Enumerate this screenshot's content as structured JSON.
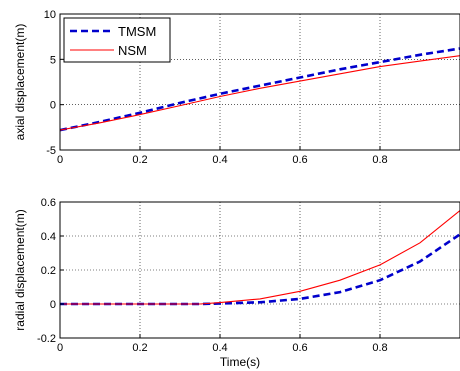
{
  "chart_data": [
    {
      "type": "line",
      "title": "",
      "xlabel": "",
      "ylabel": "axial displacement(m)",
      "xlim": [
        0,
        1
      ],
      "ylim": [
        -5,
        10
      ],
      "xticks": [
        0,
        0.2,
        0.4,
        0.6,
        0.8
      ],
      "xtick_labels": [
        "0",
        "0.2",
        "0.4",
        "0.6",
        "0.8"
      ],
      "yticks": [
        -5,
        0,
        5,
        10
      ],
      "ytick_labels": [
        "-5",
        "0",
        "5",
        "10"
      ],
      "grid": true,
      "legend": "top-left",
      "series": [
        {
          "name": "TMSM",
          "color": "#0000cc",
          "style": "dashed",
          "x": [
            0,
            0.1,
            0.2,
            0.3,
            0.4,
            0.5,
            0.6,
            0.7,
            0.8,
            0.9,
            1.0
          ],
          "y": [
            -2.8,
            -1.9,
            -0.9,
            0.2,
            1.2,
            2.1,
            3.0,
            3.9,
            4.7,
            5.5,
            6.2
          ]
        },
        {
          "name": "NSM",
          "color": "#ff0000",
          "style": "solid",
          "x": [
            0,
            0.1,
            0.2,
            0.3,
            0.4,
            0.5,
            0.6,
            0.7,
            0.8,
            0.9,
            1.0
          ],
          "y": [
            -2.8,
            -2.0,
            -1.1,
            -0.1,
            0.9,
            1.8,
            2.6,
            3.4,
            4.2,
            4.8,
            5.4
          ]
        }
      ]
    },
    {
      "type": "line",
      "title": "",
      "xlabel": "Time(s)",
      "ylabel": "radial displacement(m)",
      "xlim": [
        0,
        1
      ],
      "ylim": [
        -0.2,
        0.6
      ],
      "xticks": [
        0,
        0.2,
        0.4,
        0.6,
        0.8
      ],
      "xtick_labels": [
        "0",
        "0.2",
        "0.4",
        "0.6",
        "0.8"
      ],
      "yticks": [
        -0.2,
        0,
        0.2,
        0.4,
        0.6
      ],
      "ytick_labels": [
        "-0.2",
        "0",
        "0.2",
        "0.4",
        "0.6"
      ],
      "grid": true,
      "series": [
        {
          "name": "TMSM",
          "color": "#0000cc",
          "style": "dashed",
          "x": [
            0,
            0.2,
            0.35,
            0.4,
            0.5,
            0.6,
            0.7,
            0.8,
            0.9,
            1.0
          ],
          "y": [
            0,
            0,
            0,
            0.003,
            0.01,
            0.03,
            0.07,
            0.14,
            0.25,
            0.41
          ]
        },
        {
          "name": "NSM",
          "color": "#ff0000",
          "style": "solid",
          "x": [
            0,
            0.2,
            0.35,
            0.4,
            0.5,
            0.6,
            0.7,
            0.8,
            0.9,
            1.0
          ],
          "y": [
            0,
            0,
            0,
            0.008,
            0.03,
            0.075,
            0.14,
            0.23,
            0.36,
            0.55
          ]
        }
      ]
    }
  ]
}
